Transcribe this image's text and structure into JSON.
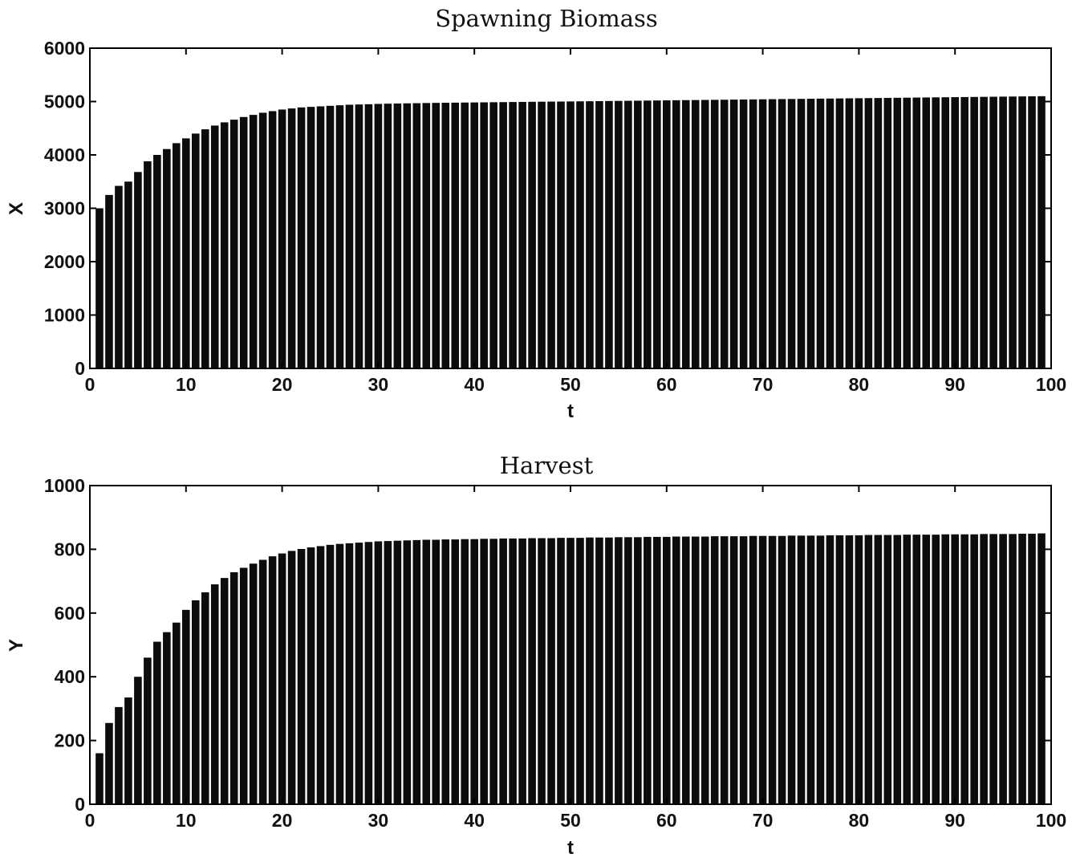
{
  "chart_data": [
    {
      "type": "bar",
      "title": "Spawning Biomass",
      "xlabel": "t",
      "ylabel": "X",
      "xlim": [
        0,
        100
      ],
      "ylim": [
        0,
        6000
      ],
      "xticks": [
        "0",
        "10",
        "20",
        "30",
        "40",
        "50",
        "60",
        "70",
        "80",
        "90",
        "100"
      ],
      "yticks": [
        "0",
        "1000",
        "2000",
        "3000",
        "4000",
        "5000",
        "6000"
      ],
      "grid": false,
      "bar_color": "#0c0c0c",
      "x": [
        1,
        2,
        3,
        4,
        5,
        6,
        7,
        8,
        9,
        10,
        11,
        12,
        13,
        14,
        15,
        16,
        17,
        18,
        19,
        20,
        21,
        22,
        23,
        24,
        25,
        26,
        27,
        28,
        29,
        30,
        31,
        32,
        33,
        34,
        35,
        36,
        37,
        38,
        39,
        40,
        41,
        42,
        43,
        44,
        45,
        46,
        47,
        48,
        49,
        50,
        51,
        52,
        53,
        54,
        55,
        56,
        57,
        58,
        59,
        60,
        61,
        62,
        63,
        64,
        65,
        66,
        67,
        68,
        69,
        70,
        71,
        72,
        73,
        74,
        75,
        76,
        77,
        78,
        79,
        80,
        81,
        82,
        83,
        84,
        85,
        86,
        87,
        88,
        89,
        90,
        91,
        92,
        93,
        94,
        95,
        96,
        97,
        98,
        99
      ],
      "values": [
        3000,
        3250,
        3420,
        3500,
        3680,
        3880,
        4000,
        4110,
        4220,
        4310,
        4400,
        4480,
        4550,
        4610,
        4660,
        4710,
        4750,
        4790,
        4820,
        4850,
        4870,
        4890,
        4900,
        4910,
        4920,
        4930,
        4940,
        4945,
        4950,
        4955,
        4960,
        4963,
        4966,
        4969,
        4972,
        4975,
        4977,
        4979,
        4981,
        4983,
        4985,
        4987,
        4989,
        4991,
        4993,
        4995,
        4997,
        4999,
        5000,
        5002,
        5004,
        5006,
        5008,
        5010,
        5012,
        5014,
        5016,
        5018,
        5020,
        5022,
        5024,
        5026,
        5028,
        5030,
        5032,
        5034,
        5036,
        5038,
        5040,
        5042,
        5044,
        5046,
        5048,
        5050,
        5052,
        5054,
        5056,
        5058,
        5060,
        5062,
        5064,
        5066,
        5068,
        5070,
        5072,
        5074,
        5076,
        5078,
        5080,
        5082,
        5084,
        5086,
        5088,
        5090,
        5092,
        5094,
        5096,
        5098,
        5100
      ]
    },
    {
      "type": "bar",
      "title": "Harvest",
      "xlabel": "t",
      "ylabel": "Y",
      "xlim": [
        0,
        100
      ],
      "ylim": [
        0,
        1000
      ],
      "xticks": [
        "0",
        "10",
        "20",
        "30",
        "40",
        "50",
        "60",
        "70",
        "80",
        "90",
        "100"
      ],
      "yticks": [
        "0",
        "200",
        "400",
        "600",
        "800",
        "1000"
      ],
      "grid": false,
      "bar_color": "#0c0c0c",
      "x": [
        1,
        2,
        3,
        4,
        5,
        6,
        7,
        8,
        9,
        10,
        11,
        12,
        13,
        14,
        15,
        16,
        17,
        18,
        19,
        20,
        21,
        22,
        23,
        24,
        25,
        26,
        27,
        28,
        29,
        30,
        31,
        32,
        33,
        34,
        35,
        36,
        37,
        38,
        39,
        40,
        41,
        42,
        43,
        44,
        45,
        46,
        47,
        48,
        49,
        50,
        51,
        52,
        53,
        54,
        55,
        56,
        57,
        58,
        59,
        60,
        61,
        62,
        63,
        64,
        65,
        66,
        67,
        68,
        69,
        70,
        71,
        72,
        73,
        74,
        75,
        76,
        77,
        78,
        79,
        80,
        81,
        82,
        83,
        84,
        85,
        86,
        87,
        88,
        89,
        90,
        91,
        92,
        93,
        94,
        95,
        96,
        97,
        98,
        99
      ],
      "values": [
        160,
        255,
        305,
        335,
        400,
        460,
        510,
        540,
        570,
        610,
        640,
        665,
        690,
        710,
        728,
        742,
        755,
        767,
        778,
        787,
        795,
        801,
        806,
        810,
        814,
        817,
        819,
        821,
        823,
        825,
        826,
        827,
        828,
        829,
        830,
        830,
        831,
        831,
        832,
        832,
        833,
        833,
        834,
        834,
        834,
        835,
        835,
        835,
        836,
        836,
        836,
        837,
        837,
        837,
        838,
        838,
        838,
        839,
        839,
        839,
        840,
        840,
        840,
        840,
        841,
        841,
        841,
        841,
        842,
        842,
        842,
        842,
        843,
        843,
        843,
        843,
        844,
        844,
        844,
        844,
        845,
        845,
        845,
        845,
        846,
        846,
        846,
        846,
        847,
        847,
        847,
        847,
        848,
        848,
        848,
        848,
        849,
        849,
        850
      ]
    }
  ]
}
